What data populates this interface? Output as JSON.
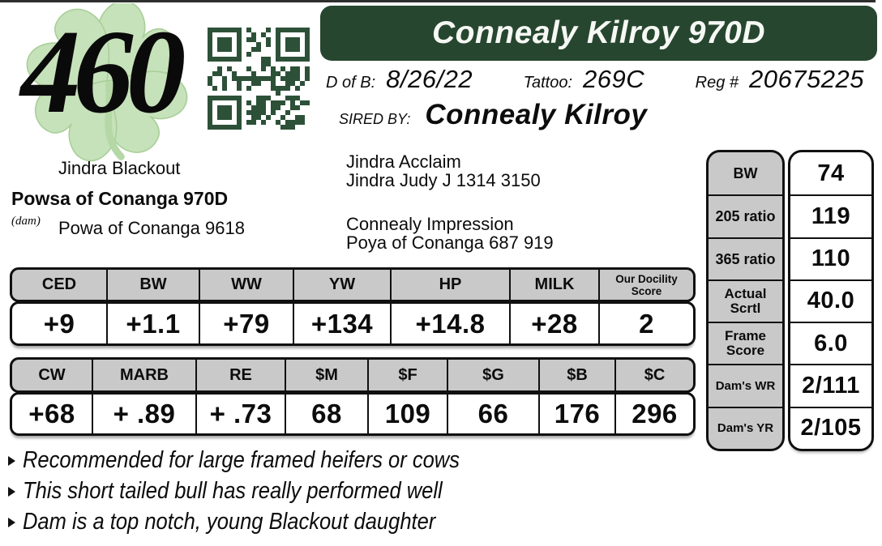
{
  "lot_number": "460",
  "colors": {
    "banner_green": "#274630",
    "qr_green": "#2d5138",
    "table_header_gray": "#c9c9c9",
    "clover_green": "#c6e2ba"
  },
  "banner": {
    "title": "Connealy Kilroy 970D"
  },
  "info_bar": {
    "dob_label": "D of B:",
    "dob_value": "8/26/22",
    "tattoo_label": "Tattoo:",
    "tattoo_value": "269C",
    "reg_label": "Reg #",
    "reg_value": "20675225"
  },
  "sire_section": {
    "label": "SIRED BY:",
    "sire_name": "Connealy Kilroy"
  },
  "pedigree": {
    "left": {
      "top": "Jindra Blackout",
      "dam": "Powsa of Conanga 970D",
      "dam_tag": "(dam)",
      "bottom": "Powa of Conanga 9618"
    },
    "right": [
      "Jindra Acclaim",
      "Jindra Judy J 1314 3150",
      "Connealy Impression",
      "Poya of Conanga 687 919"
    ]
  },
  "epd_table": {
    "headers": [
      "CED",
      "BW",
      "WW",
      "YW",
      "HP",
      "MILK",
      "Our Docility Score"
    ],
    "values": [
      "+9",
      "+1.1",
      "+79",
      "+134",
      "+14.8",
      "+28",
      "2"
    ]
  },
  "dollar_table": {
    "headers": [
      "CW",
      "MARB",
      "RE",
      "$M",
      "$F",
      "$G",
      "$B",
      "$C"
    ],
    "values": [
      "+68",
      "+ .89",
      "+ .73",
      "68",
      "109",
      "66",
      "176",
      "296"
    ]
  },
  "stats_table": {
    "labels": [
      "BW",
      "205 ratio",
      "365 ratio",
      "Actual Scrtl",
      "Frame Score",
      "Dam's WR",
      "Dam's YR"
    ],
    "values": [
      "74",
      "119",
      "110",
      "40.0",
      "6.0",
      "2/111",
      "2/105"
    ]
  },
  "notes": [
    "Recommended for large framed heifers or cows",
    "This short tailed bull has really performed well",
    "Dam is a top notch, young Blackout daughter"
  ]
}
